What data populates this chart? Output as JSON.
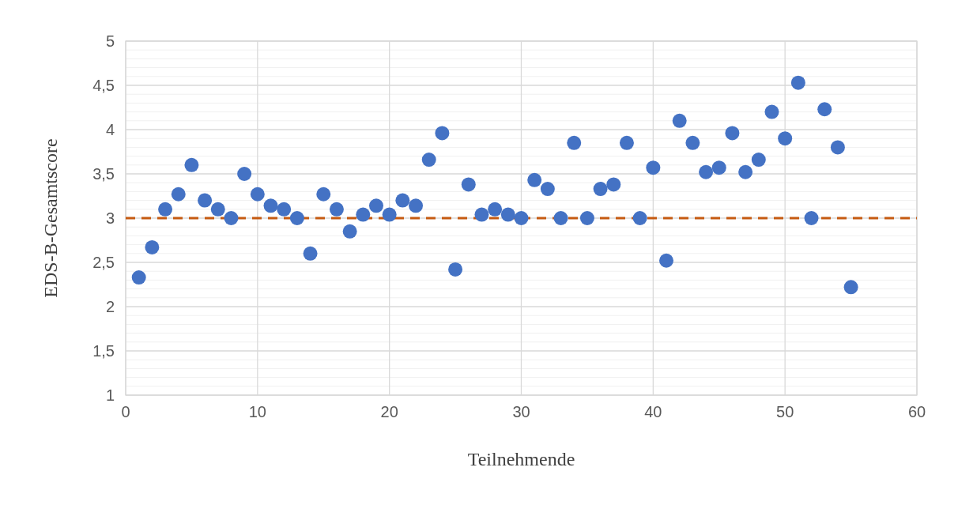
{
  "chart_data": {
    "type": "scatter",
    "xlabel": "Teilnehmende",
    "ylabel": "EDS-B-Gesamtscore",
    "x": [
      1,
      2,
      3,
      4,
      5,
      6,
      7,
      8,
      9,
      10,
      11,
      12,
      13,
      14,
      15,
      16,
      17,
      18,
      19,
      20,
      21,
      22,
      23,
      24,
      25,
      26,
      27,
      28,
      29,
      30,
      31,
      32,
      33,
      34,
      35,
      36,
      37,
      38,
      39,
      40,
      41,
      42,
      43,
      44,
      45,
      46,
      47,
      48,
      49,
      50,
      51,
      52,
      53,
      54,
      55
    ],
    "series": [
      {
        "color": "#4472c4",
        "values": [
          2.33,
          2.67,
          3.1,
          3.27,
          3.6,
          3.2,
          3.1,
          3.0,
          3.5,
          3.27,
          3.14,
          3.1,
          3.0,
          2.6,
          3.27,
          3.1,
          2.85,
          3.04,
          3.14,
          3.04,
          3.2,
          3.14,
          3.66,
          3.96,
          2.42,
          3.38,
          3.04,
          3.1,
          3.04,
          3.0,
          3.43,
          3.33,
          3.0,
          3.85,
          3.0,
          3.33,
          3.38,
          3.85,
          3.0,
          3.57,
          2.52,
          4.1,
          3.85,
          3.52,
          3.57,
          3.96,
          3.52,
          3.66,
          4.2,
          3.9,
          4.53,
          3.0,
          4.23,
          3.8,
          2.22
        ]
      }
    ],
    "xlim": [
      0,
      60
    ],
    "xticks": [
      0,
      10,
      20,
      30,
      40,
      50,
      60
    ],
    "ylim": [
      1,
      5
    ],
    "yticks": [
      {
        "value": 1,
        "label": "1"
      },
      {
        "value": 1.1,
        "label": null
      },
      {
        "value": 1.2,
        "label": null
      },
      {
        "value": 1.3,
        "label": null
      },
      {
        "value": 1.4,
        "label": null
      },
      {
        "value": 1.5,
        "label": "1,5"
      },
      {
        "value": 1.6,
        "label": null
      },
      {
        "value": 1.7,
        "label": null
      },
      {
        "value": 1.8,
        "label": null
      },
      {
        "value": 1.9,
        "label": null
      },
      {
        "value": 2,
        "label": "2"
      },
      {
        "value": 2.1,
        "label": null
      },
      {
        "value": 2.2,
        "label": null
      },
      {
        "value": 2.3,
        "label": null
      },
      {
        "value": 2.4,
        "label": null
      },
      {
        "value": 2.5,
        "label": "2,5"
      },
      {
        "value": 2.6,
        "label": null
      },
      {
        "value": 2.7,
        "label": null
      },
      {
        "value": 2.8,
        "label": null
      },
      {
        "value": 2.9,
        "label": null
      },
      {
        "value": 3,
        "label": "3"
      },
      {
        "value": 3.1,
        "label": null
      },
      {
        "value": 3.2,
        "label": null
      },
      {
        "value": 3.3,
        "label": null
      },
      {
        "value": 3.4,
        "label": null
      },
      {
        "value": 3.5,
        "label": "3,5"
      },
      {
        "value": 3.6,
        "label": null
      },
      {
        "value": 3.7,
        "label": null
      },
      {
        "value": 3.8,
        "label": null
      },
      {
        "value": 3.9,
        "label": null
      },
      {
        "value": 4,
        "label": "4"
      },
      {
        "value": 4.1,
        "label": null
      },
      {
        "value": 4.2,
        "label": null
      },
      {
        "value": 4.3,
        "label": null
      },
      {
        "value": 4.4,
        "label": null
      },
      {
        "value": 4.5,
        "label": "4,5"
      },
      {
        "value": 4.6,
        "label": null
      },
      {
        "value": 4.7,
        "label": null
      },
      {
        "value": 4.8,
        "label": null
      },
      {
        "value": 4.9,
        "label": null
      },
      {
        "value": 5,
        "label": "5"
      }
    ],
    "ref_lines": [
      {
        "axis": "y",
        "value": 3,
        "color": "#c55a11",
        "line_style": "dashed"
      }
    ],
    "grid": true,
    "marker": "circle"
  }
}
